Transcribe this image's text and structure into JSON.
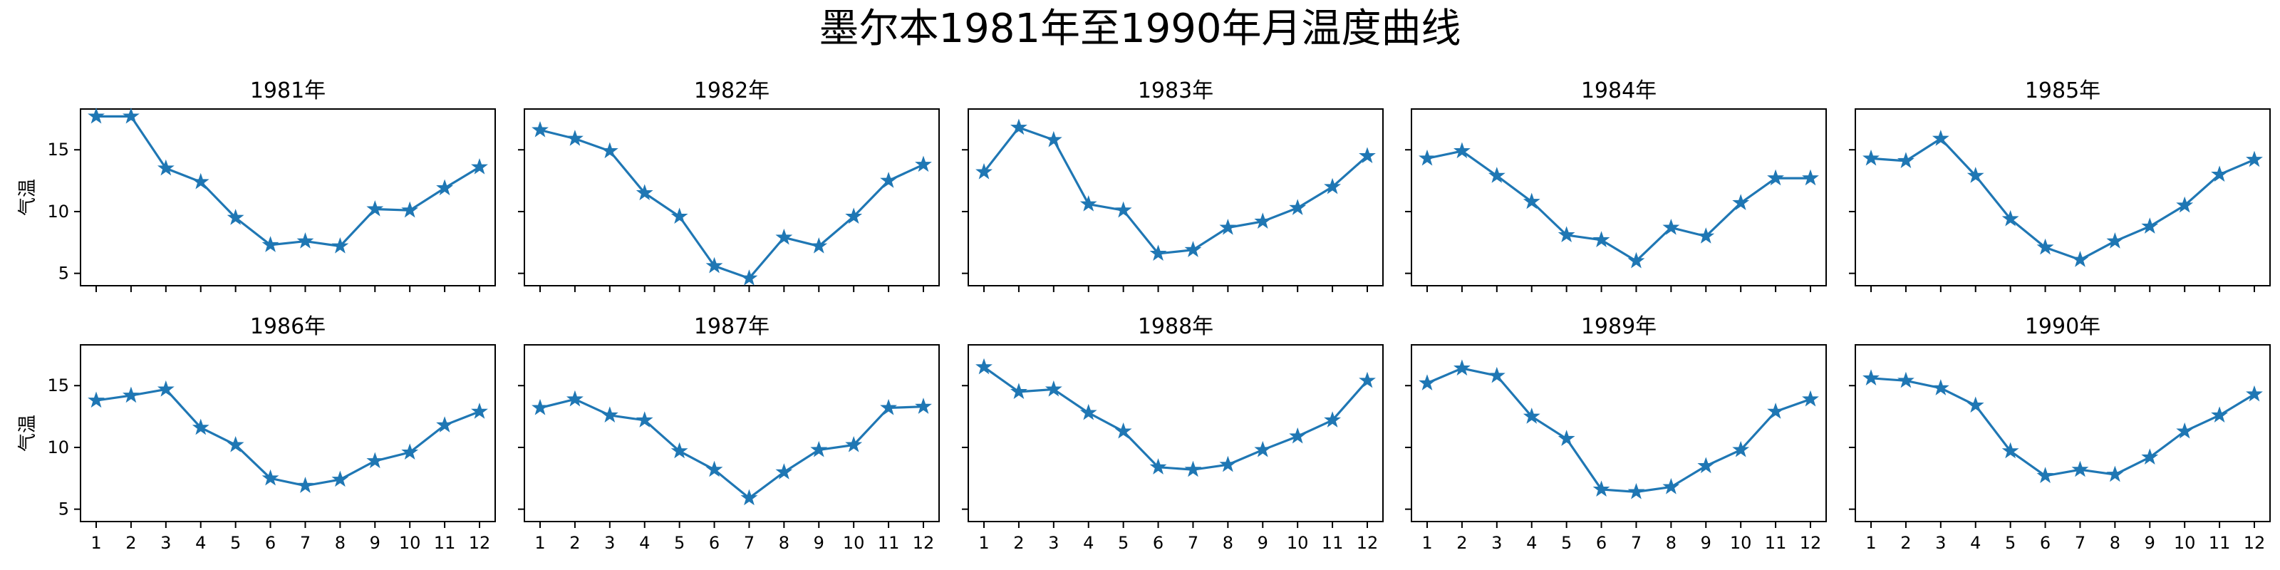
{
  "chart_data": {
    "type": "line",
    "title": "墨尔本1981年至1990年月温度曲线",
    "ylabel": "气温",
    "x": [
      1,
      2,
      3,
      4,
      5,
      6,
      7,
      8,
      9,
      10,
      11,
      12
    ],
    "ylim": [
      4,
      18.3
    ],
    "yticks": [
      5,
      10,
      15
    ],
    "marker": "star",
    "line_color": "#1f77b4",
    "grid": false,
    "legend": "none",
    "subplots": [
      {
        "title": "1981年",
        "values": [
          17.7,
          17.7,
          13.5,
          12.4,
          9.5,
          7.3,
          7.6,
          7.2,
          10.2,
          10.1,
          11.9,
          13.6
        ]
      },
      {
        "title": "1982年",
        "values": [
          16.6,
          15.9,
          14.9,
          11.5,
          9.6,
          5.6,
          4.6,
          7.9,
          7.2,
          9.6,
          12.5,
          13.8
        ]
      },
      {
        "title": "1983年",
        "values": [
          13.2,
          16.8,
          15.8,
          10.6,
          10.1,
          6.6,
          6.9,
          8.7,
          9.2,
          10.3,
          12.0,
          14.5
        ]
      },
      {
        "title": "1984年",
        "values": [
          14.3,
          14.9,
          12.9,
          10.8,
          8.1,
          7.7,
          6.0,
          8.7,
          8.0,
          10.7,
          12.7,
          12.7
        ]
      },
      {
        "title": "1985年",
        "values": [
          14.3,
          14.1,
          15.9,
          12.9,
          9.4,
          7.1,
          6.1,
          7.6,
          8.8,
          10.5,
          13.0,
          14.2
        ]
      },
      {
        "title": "1986年",
        "values": [
          13.8,
          14.2,
          14.7,
          11.6,
          10.2,
          7.5,
          6.9,
          7.4,
          8.9,
          9.6,
          11.8,
          12.9
        ]
      },
      {
        "title": "1987年",
        "values": [
          13.2,
          13.9,
          12.6,
          12.2,
          9.7,
          8.2,
          5.9,
          8.0,
          9.8,
          10.2,
          13.2,
          13.3
        ]
      },
      {
        "title": "1988年",
        "values": [
          16.5,
          14.5,
          14.7,
          12.8,
          11.3,
          8.4,
          8.2,
          8.6,
          9.8,
          10.9,
          12.2,
          15.4
        ]
      },
      {
        "title": "1989年",
        "values": [
          15.2,
          16.4,
          15.8,
          12.5,
          10.7,
          6.6,
          6.4,
          6.8,
          8.5,
          9.8,
          12.9,
          13.9
        ]
      },
      {
        "title": "1990年",
        "values": [
          15.6,
          15.4,
          14.8,
          13.4,
          9.7,
          7.7,
          8.2,
          7.8,
          9.2,
          11.3,
          12.6,
          14.3
        ]
      }
    ]
  }
}
